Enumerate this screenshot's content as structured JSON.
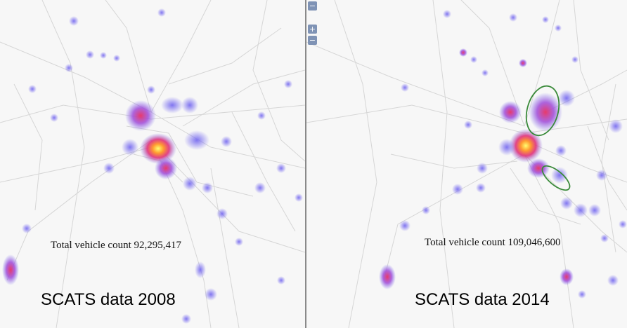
{
  "panels": {
    "left": {
      "caption": "SCATS data 2008",
      "count_label": "Total vehicle count 92,295,417"
    },
    "right": {
      "caption": "SCATS data 2014",
      "count_label": "Total vehicle count 109,046,600",
      "controls": {
        "collapse_symbol": "−",
        "zoom_in_symbol": "+",
        "zoom_out_symbol": "−"
      }
    }
  },
  "colors": {
    "heat_low": "#7a6ef0",
    "heat_mid": "#e0307a",
    "heat_high": "#ffe020",
    "road": "#d6d6d6",
    "highlight_ellipse": "#3a8a3a"
  }
}
